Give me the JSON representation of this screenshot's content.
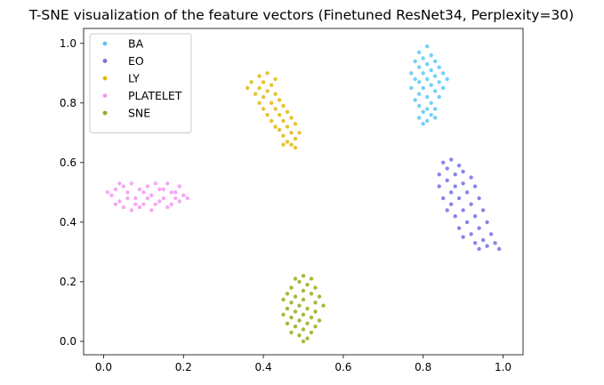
{
  "chart_data": {
    "type": "scatter",
    "title": "T-SNE visualization of the feature vectors (Finetuned ResNet34, Perplexity=30)",
    "xlabel": "",
    "ylabel": "",
    "xlim": [
      -0.05,
      1.05
    ],
    "ylim": [
      -0.045,
      1.05
    ],
    "xticks": [
      0.0,
      0.2,
      0.4,
      0.6,
      0.8,
      1.0
    ],
    "xtick_labels": [
      "0.0",
      "0.2",
      "0.4",
      "0.6",
      "0.8",
      "1.0"
    ],
    "yticks": [
      0.0,
      0.2,
      0.4,
      0.6,
      0.8,
      1.0
    ],
    "ytick_labels": [
      "0.0",
      "0.2",
      "0.4",
      "0.6",
      "0.8",
      "1.0"
    ],
    "grid": false,
    "legend_position": "top-left",
    "series": [
      {
        "name": "BA",
        "color": "#5bc8f5",
        "points": [
          [
            0.81,
            0.99
          ],
          [
            0.79,
            0.97
          ],
          [
            0.82,
            0.96
          ],
          [
            0.8,
            0.95
          ],
          [
            0.78,
            0.94
          ],
          [
            0.83,
            0.94
          ],
          [
            0.81,
            0.93
          ],
          [
            0.84,
            0.92
          ],
          [
            0.79,
            0.92
          ],
          [
            0.82,
            0.91
          ],
          [
            0.77,
            0.9
          ],
          [
            0.8,
            0.9
          ],
          [
            0.85,
            0.9
          ],
          [
            0.83,
            0.89
          ],
          [
            0.78,
            0.88
          ],
          [
            0.81,
            0.88
          ],
          [
            0.86,
            0.88
          ],
          [
            0.79,
            0.87
          ],
          [
            0.84,
            0.87
          ],
          [
            0.82,
            0.86
          ],
          [
            0.8,
            0.85
          ],
          [
            0.77,
            0.85
          ],
          [
            0.85,
            0.85
          ],
          [
            0.83,
            0.84
          ],
          [
            0.79,
            0.83
          ],
          [
            0.81,
            0.82
          ],
          [
            0.78,
            0.81
          ],
          [
            0.84,
            0.82
          ],
          [
            0.82,
            0.8
          ],
          [
            0.79,
            0.79
          ],
          [
            0.81,
            0.78
          ],
          [
            0.83,
            0.78
          ],
          [
            0.8,
            0.77
          ],
          [
            0.82,
            0.76
          ],
          [
            0.79,
            0.75
          ],
          [
            0.81,
            0.74
          ],
          [
            0.83,
            0.75
          ],
          [
            0.8,
            0.73
          ]
        ]
      },
      {
        "name": "EO",
        "color": "#7370e8",
        "points": [
          [
            0.87,
            0.61
          ],
          [
            0.85,
            0.6
          ],
          [
            0.89,
            0.59
          ],
          [
            0.86,
            0.58
          ],
          [
            0.9,
            0.57
          ],
          [
            0.84,
            0.56
          ],
          [
            0.88,
            0.56
          ],
          [
            0.92,
            0.55
          ],
          [
            0.86,
            0.54
          ],
          [
            0.9,
            0.53
          ],
          [
            0.84,
            0.52
          ],
          [
            0.88,
            0.52
          ],
          [
            0.93,
            0.52
          ],
          [
            0.87,
            0.5
          ],
          [
            0.91,
            0.5
          ],
          [
            0.85,
            0.48
          ],
          [
            0.89,
            0.48
          ],
          [
            0.94,
            0.48
          ],
          [
            0.87,
            0.46
          ],
          [
            0.92,
            0.46
          ],
          [
            0.86,
            0.44
          ],
          [
            0.9,
            0.44
          ],
          [
            0.95,
            0.44
          ],
          [
            0.88,
            0.42
          ],
          [
            0.93,
            0.42
          ],
          [
            0.91,
            0.4
          ],
          [
            0.96,
            0.4
          ],
          [
            0.89,
            0.38
          ],
          [
            0.94,
            0.38
          ],
          [
            0.92,
            0.36
          ],
          [
            0.97,
            0.36
          ],
          [
            0.9,
            0.35
          ],
          [
            0.95,
            0.34
          ],
          [
            0.93,
            0.33
          ],
          [
            0.98,
            0.33
          ],
          [
            0.96,
            0.32
          ],
          [
            0.99,
            0.31
          ],
          [
            0.94,
            0.31
          ]
        ]
      },
      {
        "name": "LY",
        "color": "#e3b90e",
        "points": [
          [
            0.41,
            0.9
          ],
          [
            0.39,
            0.89
          ],
          [
            0.43,
            0.88
          ],
          [
            0.37,
            0.87
          ],
          [
            0.4,
            0.87
          ],
          [
            0.42,
            0.86
          ],
          [
            0.36,
            0.85
          ],
          [
            0.39,
            0.85
          ],
          [
            0.41,
            0.84
          ],
          [
            0.38,
            0.83
          ],
          [
            0.43,
            0.83
          ],
          [
            0.4,
            0.82
          ],
          [
            0.44,
            0.81
          ],
          [
            0.39,
            0.8
          ],
          [
            0.42,
            0.8
          ],
          [
            0.45,
            0.79
          ],
          [
            0.4,
            0.78
          ],
          [
            0.43,
            0.78
          ],
          [
            0.46,
            0.77
          ],
          [
            0.41,
            0.76
          ],
          [
            0.44,
            0.76
          ],
          [
            0.47,
            0.75
          ],
          [
            0.42,
            0.74
          ],
          [
            0.45,
            0.74
          ],
          [
            0.48,
            0.73
          ],
          [
            0.43,
            0.72
          ],
          [
            0.46,
            0.72
          ],
          [
            0.44,
            0.71
          ],
          [
            0.47,
            0.7
          ],
          [
            0.49,
            0.7
          ],
          [
            0.45,
            0.69
          ],
          [
            0.48,
            0.68
          ],
          [
            0.46,
            0.67
          ],
          [
            0.47,
            0.66
          ],
          [
            0.45,
            0.66
          ],
          [
            0.48,
            0.65
          ]
        ]
      },
      {
        "name": "PLATELET",
        "color": "#f29af2",
        "points": [
          [
            0.01,
            0.5
          ],
          [
            0.03,
            0.51
          ],
          [
            0.05,
            0.52
          ],
          [
            0.02,
            0.49
          ],
          [
            0.04,
            0.47
          ],
          [
            0.06,
            0.5
          ],
          [
            0.07,
            0.53
          ],
          [
            0.08,
            0.48
          ],
          [
            0.09,
            0.51
          ],
          [
            0.1,
            0.46
          ],
          [
            0.11,
            0.52
          ],
          [
            0.12,
            0.49
          ],
          [
            0.13,
            0.53
          ],
          [
            0.14,
            0.47
          ],
          [
            0.15,
            0.51
          ],
          [
            0.16,
            0.45
          ],
          [
            0.17,
            0.5
          ],
          [
            0.18,
            0.48
          ],
          [
            0.19,
            0.52
          ],
          [
            0.2,
            0.49
          ],
          [
            0.05,
            0.45
          ],
          [
            0.07,
            0.44
          ],
          [
            0.09,
            0.45
          ],
          [
            0.11,
            0.48
          ],
          [
            0.13,
            0.46
          ],
          [
            0.15,
            0.48
          ],
          [
            0.17,
            0.46
          ],
          [
            0.19,
            0.47
          ],
          [
            0.21,
            0.48
          ],
          [
            0.03,
            0.46
          ],
          [
            0.06,
            0.48
          ],
          [
            0.1,
            0.5
          ],
          [
            0.14,
            0.51
          ],
          [
            0.18,
            0.5
          ],
          [
            0.08,
            0.46
          ],
          [
            0.12,
            0.44
          ],
          [
            0.16,
            0.53
          ],
          [
            0.04,
            0.53
          ]
        ]
      },
      {
        "name": "SNE",
        "color": "#8fb01a",
        "points": [
          [
            0.5,
            0.22
          ],
          [
            0.48,
            0.21
          ],
          [
            0.52,
            0.21
          ],
          [
            0.49,
            0.2
          ],
          [
            0.51,
            0.19
          ],
          [
            0.47,
            0.18
          ],
          [
            0.53,
            0.18
          ],
          [
            0.5,
            0.17
          ],
          [
            0.46,
            0.16
          ],
          [
            0.52,
            0.16
          ],
          [
            0.48,
            0.15
          ],
          [
            0.54,
            0.15
          ],
          [
            0.45,
            0.14
          ],
          [
            0.5,
            0.14
          ],
          [
            0.47,
            0.13
          ],
          [
            0.53,
            0.13
          ],
          [
            0.49,
            0.12
          ],
          [
            0.55,
            0.12
          ],
          [
            0.46,
            0.11
          ],
          [
            0.51,
            0.11
          ],
          [
            0.48,
            0.1
          ],
          [
            0.53,
            0.1
          ],
          [
            0.45,
            0.09
          ],
          [
            0.5,
            0.09
          ],
          [
            0.47,
            0.08
          ],
          [
            0.52,
            0.08
          ],
          [
            0.49,
            0.07
          ],
          [
            0.54,
            0.07
          ],
          [
            0.46,
            0.06
          ],
          [
            0.51,
            0.06
          ],
          [
            0.48,
            0.05
          ],
          [
            0.53,
            0.05
          ],
          [
            0.5,
            0.04
          ],
          [
            0.47,
            0.03
          ],
          [
            0.52,
            0.03
          ],
          [
            0.49,
            0.02
          ],
          [
            0.51,
            0.01
          ],
          [
            0.5,
            0.0
          ]
        ]
      }
    ]
  }
}
